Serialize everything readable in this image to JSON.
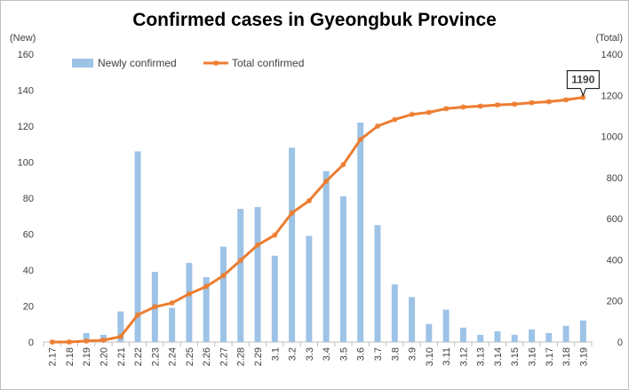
{
  "chart_data": {
    "type": "bar+line",
    "title": "Confirmed cases in Gyeongbuk Province",
    "left_axis_label": "(New)",
    "right_axis_label": "(Total)",
    "categories": [
      "2.17",
      "2.18",
      "2.19",
      "2.20",
      "2.21",
      "2.22",
      "2.23",
      "2.24",
      "2.25",
      "2.26",
      "2.27",
      "2.28",
      "2.29",
      "3.1",
      "3.2",
      "3.3",
      "3.4",
      "3.5",
      "3.6",
      "3.7",
      "3.8",
      "3.9",
      "3.10",
      "3.11",
      "3.12",
      "3.13",
      "3.14",
      "3.15",
      "3.16",
      "3.17",
      "3.18",
      "3.19"
    ],
    "series": [
      {
        "name": "Newly confirmed",
        "type": "bar",
        "axis": "left",
        "color": "#9dc3e6",
        "values": [
          0,
          0,
          5,
          4,
          17,
          106,
          39,
          19,
          44,
          36,
          53,
          74,
          75,
          48,
          108,
          59,
          95,
          81,
          122,
          65,
          32,
          25,
          10,
          18,
          8,
          4,
          6,
          4,
          7,
          5,
          9,
          12
        ]
      },
      {
        "name": "Total confirmed",
        "type": "line",
        "axis": "right",
        "color": "#ed7d31",
        "values": [
          0,
          0,
          5,
          9,
          26,
          132,
          171,
          190,
          234,
          270,
          323,
          397,
          472,
          520,
          628,
          687,
          782,
          863,
          985,
          1050,
          1082,
          1107,
          1117,
          1135,
          1143,
          1147,
          1153,
          1157,
          1164,
          1169,
          1178,
          1190
        ]
      }
    ],
    "ylim_left": [
      0,
      160
    ],
    "yticks_left": [
      0,
      20,
      40,
      60,
      80,
      100,
      120,
      140,
      160
    ],
    "ylim_right": [
      0,
      1400
    ],
    "yticks_right": [
      0,
      200,
      400,
      600,
      800,
      1000,
      1200,
      1400
    ],
    "grid": false,
    "legend_placement": "top-left",
    "annotation": {
      "text": "1190",
      "color": "#ff0000"
    }
  }
}
